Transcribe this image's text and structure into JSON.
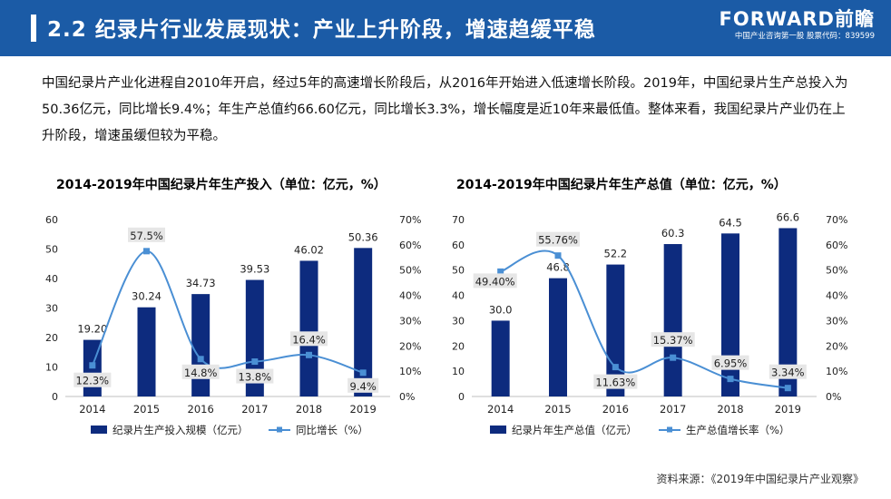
{
  "header": {
    "title": "2.2 纪录片行业发展现状：产业上升阶段，增速趋缓平稳",
    "logo_brand": "FORWARD前瞻",
    "logo_sub": "中国产业咨询第一股 股票代码：839599"
  },
  "paragraph": "中国纪录片产业化进程自2010年开启，经过5年的高速增长阶段后，从2016年开始进入低速增长阶段。2019年，中国纪录片生产总投入为50.36亿元，同比增长9.4%；年生产总值约66.60亿元，同比增长3.3%，增长幅度是近10年来最低值。整体来看，我国纪录片产业仍在上升阶段，增速虽缓但较为平稳。",
  "source": "资料来源：《2019年中国纪录片产业观察》",
  "colors": {
    "bar": "#0d2b7e",
    "line": "#4a8fd4",
    "header": "#1b5ba6"
  },
  "chart_data": [
    {
      "type": "bar",
      "title": "2014-2019年中国纪录片年生产投入（单位：亿元，%）",
      "categories": [
        "2014",
        "2015",
        "2016",
        "2017",
        "2018",
        "2019"
      ],
      "bar_series": {
        "name": "纪录片生产投入规模（亿元）",
        "values": [
          19.2,
          30.24,
          34.73,
          39.53,
          46.02,
          50.36
        ],
        "labels": [
          "19.20",
          "30.24",
          "34.73",
          "39.53",
          "46.02",
          "50.36"
        ]
      },
      "line_series": {
        "name": "同比增长（%）",
        "values": [
          12.3,
          57.5,
          14.8,
          13.8,
          16.4,
          9.4
        ],
        "labels": [
          "12.3%",
          "57.5%",
          "14.8%",
          "13.8%",
          "16.4%",
          "9.4%"
        ]
      },
      "y_left": {
        "min": 0,
        "max": 60,
        "ticks": [
          "0",
          "10",
          "20",
          "30",
          "40",
          "50",
          "60"
        ]
      },
      "y_right": {
        "min": 0,
        "max": 70,
        "ticks": [
          "0%",
          "10%",
          "20%",
          "30%",
          "40%",
          "50%",
          "60%",
          "70%"
        ]
      }
    },
    {
      "type": "bar",
      "title": "2014-2019年中国纪录片年生产总值（单位：亿元，%）",
      "categories": [
        "2014",
        "2015",
        "2016",
        "2017",
        "2018",
        "2019"
      ],
      "bar_series": {
        "name": "纪录片年生产总值（亿元）",
        "values": [
          30.0,
          46.8,
          52.2,
          60.3,
          64.5,
          66.6
        ],
        "labels": [
          "30.0",
          "46.8",
          "52.2",
          "60.3",
          "64.5",
          "66.6"
        ]
      },
      "line_series": {
        "name": "生产总值增长率（%）",
        "values": [
          49.4,
          55.76,
          11.63,
          15.37,
          6.95,
          3.34
        ],
        "labels": [
          "49.40%",
          "55.76%",
          "11.63%",
          "15.37%",
          "6.95%",
          "3.34%"
        ]
      },
      "y_left": {
        "min": 0,
        "max": 70,
        "ticks": [
          "0",
          "10",
          "20",
          "30",
          "40",
          "50",
          "60",
          "70"
        ]
      },
      "y_right": {
        "min": 0,
        "max": 70,
        "ticks": [
          "0%",
          "10%",
          "20%",
          "30%",
          "40%",
          "50%",
          "60%",
          "70%"
        ]
      }
    }
  ]
}
